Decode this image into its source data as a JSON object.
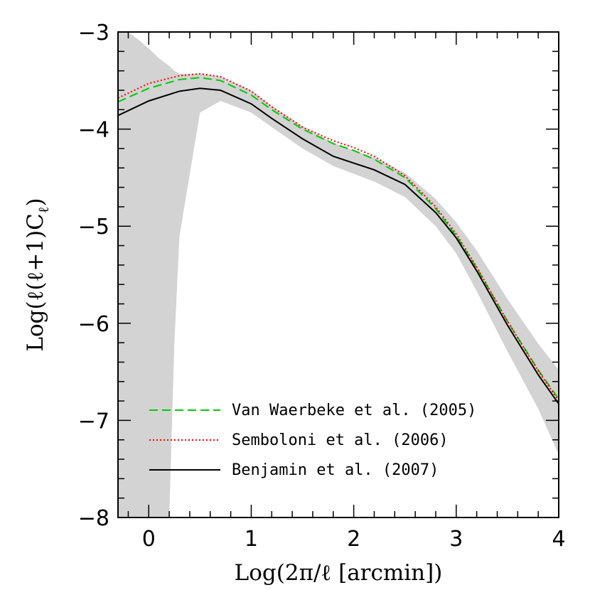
{
  "chart_data": {
    "type": "line",
    "xlabel": "Log(2π/ℓ [arcmin])",
    "ylabel": "Log(ℓ(ℓ+1)C",
    "ylabel_subscript": "ℓ",
    "ylabel_close": ")",
    "xlim": [
      -0.3,
      4
    ],
    "ylim": [
      -8,
      -3
    ],
    "x_ticks": [
      0,
      1,
      2,
      3,
      4
    ],
    "x_tick_labels": [
      "0",
      "1",
      "2",
      "3",
      "4"
    ],
    "y_ticks": [
      -8,
      -7,
      -6,
      -5,
      -4,
      -3
    ],
    "y_tick_labels": [
      "−8",
      "−7",
      "−6",
      "−5",
      "−4",
      "−3"
    ],
    "grid": false,
    "legend_position": "bottom-center",
    "series": [
      {
        "name": "Van Waerbeke et al. (2005)",
        "color": "#00cc00",
        "style": "dashed",
        "x": [
          -0.3,
          0.0,
          0.3,
          0.5,
          0.7,
          1.0,
          1.2,
          1.5,
          1.8,
          2.0,
          2.2,
          2.5,
          2.8,
          3.0,
          3.2,
          3.5,
          3.8,
          4.0
        ],
        "y": [
          -3.72,
          -3.58,
          -3.49,
          -3.47,
          -3.5,
          -3.65,
          -3.8,
          -4.0,
          -4.15,
          -4.22,
          -4.31,
          -4.5,
          -4.82,
          -5.1,
          -5.43,
          -5.98,
          -6.48,
          -6.78
        ]
      },
      {
        "name": "Semboloni et al. (2006)",
        "color": "#ff0000",
        "style": "dotted",
        "x": [
          -0.3,
          0.0,
          0.3,
          0.5,
          0.7,
          1.0,
          1.2,
          1.5,
          1.8,
          2.0,
          2.2,
          2.5,
          2.8,
          3.0,
          3.2,
          3.5,
          3.8,
          4.0
        ],
        "y": [
          -3.68,
          -3.53,
          -3.45,
          -3.43,
          -3.46,
          -3.61,
          -3.77,
          -3.98,
          -4.12,
          -4.19,
          -4.28,
          -4.48,
          -4.8,
          -5.08,
          -5.42,
          -5.98,
          -6.49,
          -6.8
        ]
      },
      {
        "name": "Benjamin et al. (2007)",
        "color": "#000000",
        "style": "solid",
        "x": [
          -0.3,
          0.0,
          0.3,
          0.5,
          0.7,
          1.0,
          1.2,
          1.5,
          1.8,
          2.0,
          2.2,
          2.5,
          2.8,
          3.0,
          3.2,
          3.5,
          3.8,
          4.0
        ],
        "y": [
          -3.86,
          -3.71,
          -3.61,
          -3.58,
          -3.6,
          -3.74,
          -3.89,
          -4.1,
          -4.28,
          -4.35,
          -4.42,
          -4.57,
          -4.86,
          -5.12,
          -5.46,
          -6.02,
          -6.53,
          -6.83
        ]
      }
    ],
    "uncertainty_band": {
      "color": "#d3d3d3",
      "x": [
        -0.3,
        -0.2,
        -0.1,
        0.0,
        0.1,
        0.2,
        0.25,
        0.3,
        0.5,
        0.7,
        1.0,
        1.2,
        1.5,
        1.8,
        2.0,
        2.2,
        2.5,
        2.8,
        3.0,
        3.2,
        3.5,
        3.8,
        4.0
      ],
      "upper": [
        -3.0,
        -3.0,
        -3.08,
        -3.17,
        -3.27,
        -3.35,
        -3.4,
        -3.43,
        -3.43,
        -3.46,
        -3.6,
        -3.76,
        -3.97,
        -4.14,
        -4.22,
        -4.29,
        -4.45,
        -4.72,
        -4.96,
        -5.25,
        -5.75,
        -6.21,
        -6.48
      ],
      "lower": [
        -8.0,
        -8.0,
        -8.0,
        -8.0,
        -8.0,
        -8.0,
        -6.2,
        -5.1,
        -3.83,
        -3.71,
        -3.83,
        -3.98,
        -4.2,
        -4.38,
        -4.46,
        -4.54,
        -4.7,
        -5.0,
        -5.28,
        -5.67,
        -6.29,
        -6.88,
        -7.35
      ]
    }
  }
}
